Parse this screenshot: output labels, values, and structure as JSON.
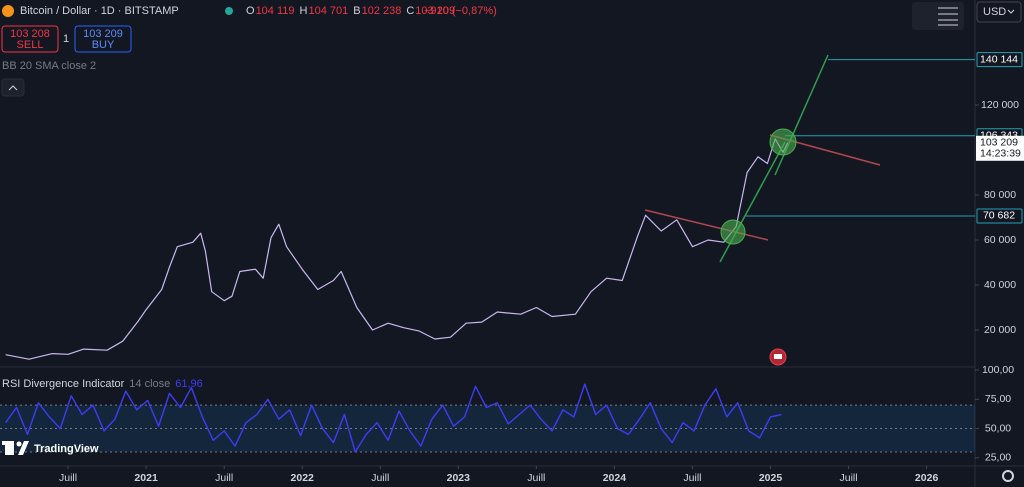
{
  "header": {
    "title": "Bitcoin / Dollar · 1D · BITSTAMP",
    "ohlc": [
      {
        "key": "O",
        "value": "104 119"
      },
      {
        "key": "H",
        "value": "104 701"
      },
      {
        "key": "B",
        "value": "102 238"
      },
      {
        "key": "C",
        "value": "103 209"
      }
    ],
    "change": "−910 (−0,87%)",
    "sell_price": "103 208",
    "sell_label": "SELL",
    "spread": "1",
    "buy_price": "103 209",
    "buy_label": "BUY",
    "indicator": "BB 20 SMA close 2",
    "currency": "USD",
    "brand": "TradingView"
  },
  "chart_data": [
    {
      "type": "line",
      "color": "#c9b8f0",
      "x": [
        2020.1,
        2020.25,
        2020.4,
        2020.5,
        2020.6,
        2020.75,
        2020.85,
        2020.95,
        2021.0,
        2021.1,
        2021.15,
        2021.2,
        2021.3,
        2021.35,
        2021.38,
        2021.42,
        2021.5,
        2021.55,
        2021.6,
        2021.7,
        2021.75,
        2021.8,
        2021.85,
        2021.9,
        2022.0,
        2022.1,
        2022.2,
        2022.25,
        2022.35,
        2022.45,
        2022.55,
        2022.65,
        2022.75,
        2022.85,
        2022.95,
        2023.05,
        2023.15,
        2023.25,
        2023.4,
        2023.5,
        2023.6,
        2023.75,
        2023.85,
        2023.95,
        2024.05,
        2024.15,
        2024.2,
        2024.3,
        2024.4,
        2024.5,
        2024.6,
        2024.7,
        2024.78,
        2024.85,
        2024.92,
        2024.98,
        2025.03,
        2025.08,
        2025.11
      ],
      "values": [
        9000,
        7000,
        9500,
        9200,
        11500,
        11000,
        15000,
        24000,
        29000,
        38000,
        48000,
        57000,
        59000,
        63000,
        55000,
        37000,
        33000,
        35000,
        46000,
        47000,
        43000,
        61000,
        67000,
        57000,
        47000,
        38000,
        42000,
        46000,
        30000,
        20000,
        23000,
        21000,
        19500,
        16000,
        16800,
        23000,
        23500,
        28000,
        27000,
        30000,
        26000,
        27000,
        37000,
        43000,
        42000,
        62000,
        71000,
        64000,
        69000,
        57000,
        60000,
        59000,
        66000,
        90000,
        97000,
        94000,
        105000,
        99000,
        103209
      ],
      "last_value_label": "103 209",
      "countdown": "14:23:39",
      "levels": [
        140144,
        106343,
        70682
      ],
      "level_labels": [
        "140 144",
        "106 343",
        "70 682"
      ],
      "level_color": "#22a1b4",
      "xlim": [
        2020.064,
        2026.31
      ],
      "xticks": [
        {
          "value": 2020.5,
          "label": "Juill"
        },
        2021,
        {
          "value": 2021.5,
          "label": "Juill"
        },
        2022,
        {
          "value": 2022.5,
          "label": "Juill"
        },
        2023,
        {
          "value": 2023.5,
          "label": "Juill"
        },
        2024,
        {
          "value": 2024.5,
          "label": "Juill"
        },
        2025,
        {
          "value": 2025.5,
          "label": "Juill"
        },
        2026
      ],
      "ylim": [
        2222,
        166667
      ],
      "yticks": [
        {
          "value": 20000,
          "label": "20 000"
        },
        {
          "value": 40000,
          "label": "40 000"
        },
        {
          "value": 60000,
          "label": "60 000"
        },
        {
          "value": 80000,
          "label": "80 000"
        },
        {
          "value": 120000,
          "label": "120 000"
        }
      ]
    },
    {
      "type": "line",
      "title": "RSI Divergence Indicator",
      "subtitle": "14 close",
      "current": "61,96",
      "color": "#3d3df5",
      "band": [
        30,
        70
      ],
      "x": [
        2020.1,
        2020.17,
        2020.24,
        2020.31,
        2020.38,
        2020.45,
        2020.52,
        2020.59,
        2020.66,
        2020.73,
        2020.8,
        2020.87,
        2020.94,
        2021.01,
        2021.08,
        2021.15,
        2021.22,
        2021.29,
        2021.36,
        2021.43,
        2021.5,
        2021.57,
        2021.64,
        2021.71,
        2021.78,
        2021.85,
        2021.92,
        2021.99,
        2022.06,
        2022.13,
        2022.2,
        2022.27,
        2022.34,
        2022.41,
        2022.48,
        2022.55,
        2022.62,
        2022.69,
        2022.76,
        2022.83,
        2022.9,
        2022.97,
        2023.04,
        2023.11,
        2023.18,
        2023.25,
        2023.32,
        2023.39,
        2023.46,
        2023.53,
        2023.6,
        2023.67,
        2023.74,
        2023.81,
        2023.88,
        2023.95,
        2024.02,
        2024.09,
        2024.16,
        2024.23,
        2024.3,
        2024.37,
        2024.44,
        2024.51,
        2024.58,
        2024.65,
        2024.72,
        2024.79,
        2024.86,
        2024.93,
        2025.0,
        2025.07
      ],
      "values": [
        55,
        68,
        45,
        72,
        60,
        50,
        78,
        62,
        70,
        48,
        58,
        82,
        66,
        74,
        52,
        80,
        68,
        85,
        60,
        40,
        48,
        35,
        55,
        62,
        75,
        58,
        66,
        44,
        70,
        50,
        38,
        62,
        30,
        45,
        55,
        40,
        65,
        48,
        35,
        58,
        70,
        52,
        60,
        86,
        68,
        72,
        54,
        62,
        70,
        58,
        48,
        66,
        60,
        88,
        62,
        70,
        50,
        45,
        58,
        72,
        50,
        38,
        55,
        48,
        70,
        84,
        60,
        72,
        48,
        42,
        60,
        61.96
      ],
      "xlim": [
        2020.064,
        2026.31
      ],
      "ylim": [
        18,
        102.6
      ],
      "yticks": [
        {
          "value": 100,
          "label": "100,00"
        },
        {
          "value": 75,
          "label": "75,00"
        },
        {
          "value": 50,
          "label": "50,00"
        },
        {
          "value": 25,
          "label": "25,00"
        }
      ]
    }
  ]
}
